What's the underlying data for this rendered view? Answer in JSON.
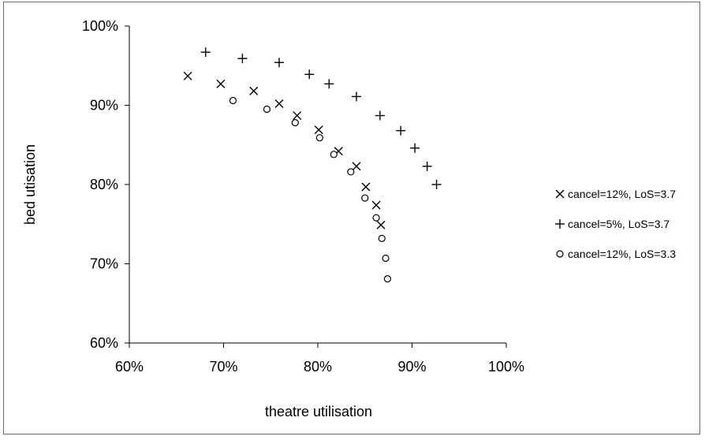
{
  "chart_data": {
    "type": "scatter",
    "title": "",
    "xlabel": "theatre utilisation",
    "ylabel": "bed utisation",
    "xlim": [
      0.6,
      1.0
    ],
    "ylim": [
      0.6,
      1.0
    ],
    "x_ticks": [
      "60%",
      "70%",
      "80%",
      "90%",
      "100%"
    ],
    "y_ticks": [
      "60%",
      "70%",
      "80%",
      "90%",
      "100%"
    ],
    "grid": false,
    "legend_position": "right",
    "series": [
      {
        "name": "cancel=12%, LoS=3.7",
        "marker": "x",
        "points": [
          [
            0.662,
            0.937
          ],
          [
            0.697,
            0.927
          ],
          [
            0.732,
            0.918
          ],
          [
            0.759,
            0.902
          ],
          [
            0.778,
            0.887
          ],
          [
            0.801,
            0.869
          ],
          [
            0.822,
            0.842
          ],
          [
            0.841,
            0.823
          ],
          [
            0.851,
            0.797
          ],
          [
            0.862,
            0.774
          ],
          [
            0.867,
            0.749
          ]
        ]
      },
      {
        "name": "cancel=5%, LoS=3.7",
        "marker": "+",
        "points": [
          [
            0.681,
            0.967
          ],
          [
            0.72,
            0.959
          ],
          [
            0.759,
            0.954
          ],
          [
            0.791,
            0.939
          ],
          [
            0.812,
            0.927
          ],
          [
            0.841,
            0.911
          ],
          [
            0.866,
            0.887
          ],
          [
            0.888,
            0.868
          ],
          [
            0.903,
            0.846
          ],
          [
            0.916,
            0.823
          ],
          [
            0.926,
            0.8
          ]
        ]
      },
      {
        "name": "cancel=12%, LoS=3.3",
        "marker": "o",
        "points": [
          [
            0.71,
            0.906
          ],
          [
            0.746,
            0.895
          ],
          [
            0.776,
            0.878
          ],
          [
            0.802,
            0.859
          ],
          [
            0.817,
            0.838
          ],
          [
            0.835,
            0.816
          ],
          [
            0.85,
            0.783
          ],
          [
            0.862,
            0.758
          ],
          [
            0.868,
            0.732
          ],
          [
            0.872,
            0.707
          ],
          [
            0.874,
            0.681
          ]
        ]
      }
    ]
  }
}
